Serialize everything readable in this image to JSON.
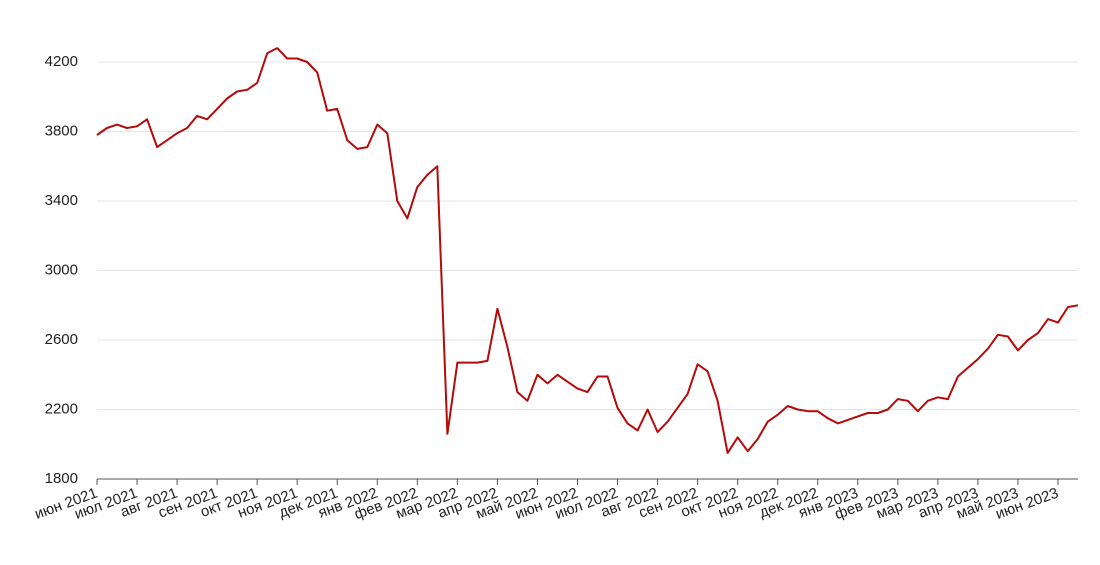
{
  "chart_data": {
    "type": "line",
    "categories": [
      "июн 2021",
      null,
      null,
      null,
      "июл 2021",
      null,
      null,
      null,
      "авг 2021",
      null,
      null,
      null,
      "сен 2021",
      null,
      null,
      null,
      "окт 2021",
      null,
      null,
      null,
      "ноя 2021",
      null,
      null,
      null,
      "дек 2021",
      null,
      null,
      null,
      "янв 2022",
      null,
      null,
      null,
      "фев 2022",
      null,
      null,
      null,
      "мар 2022",
      null,
      null,
      null,
      "апр 2022",
      null,
      null,
      null,
      "май 2022",
      null,
      null,
      null,
      "июн 2022",
      null,
      null,
      null,
      "июл 2022",
      null,
      null,
      null,
      "авг 2022",
      null,
      null,
      null,
      "сен 2022",
      null,
      null,
      null,
      "окт 2022",
      null,
      null,
      null,
      "ноя 2022",
      null,
      null,
      null,
      "дек 2022",
      null,
      null,
      null,
      "янв 2023",
      null,
      null,
      null,
      "фев 2023",
      null,
      null,
      null,
      "мар 2023",
      null,
      null,
      null,
      "апр 2023",
      null,
      null,
      null,
      "май 2023",
      null,
      null,
      null,
      "июн 2023",
      null,
      null
    ],
    "values": [
      3780,
      3820,
      3840,
      3820,
      3830,
      3870,
      3710,
      3750,
      3790,
      3820,
      3890,
      3870,
      3930,
      3990,
      4030,
      4040,
      4080,
      4250,
      4280,
      4220,
      4220,
      4200,
      4140,
      3920,
      3930,
      3750,
      3700,
      3710,
      3840,
      3790,
      3400,
      3300,
      3480,
      3550,
      3600,
      2060,
      2470,
      2470,
      2470,
      2480,
      2780,
      2560,
      2300,
      2250,
      2400,
      2350,
      2400,
      2360,
      2320,
      2300,
      2390,
      2390,
      2210,
      2120,
      2080,
      2200,
      2070,
      2130,
      2210,
      2290,
      2460,
      2420,
      2250,
      1950,
      2040,
      1960,
      2030,
      2130,
      2170,
      2220,
      2200,
      2190,
      2190,
      2150,
      2120,
      2140,
      2160,
      2180,
      2180,
      2200,
      2260,
      2250,
      2190,
      2250,
      2270,
      2260,
      2390,
      2440,
      2490,
      2550,
      2630,
      2620,
      2540,
      2600,
      2640,
      2720,
      2700,
      2790,
      2800
    ],
    "color": "#b50a0a",
    "ylim": [
      1800,
      4200
    ],
    "yticks": [
      1800,
      2200,
      2600,
      3000,
      3400,
      3800,
      4200
    ],
    "grid": true
  }
}
